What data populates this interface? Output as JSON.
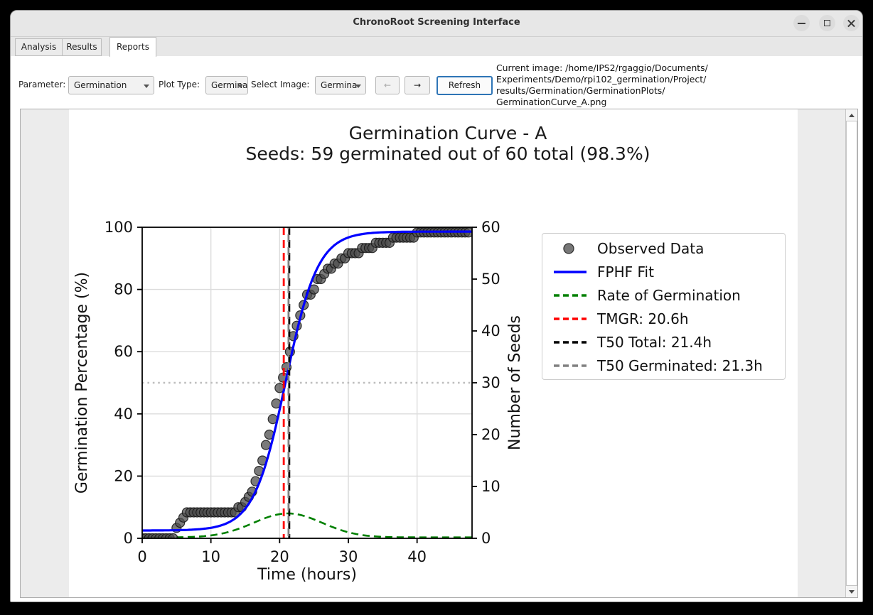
{
  "window": {
    "title": "ChronoRoot Screening Interface",
    "icons": {
      "minimize": "minimize-icon",
      "maximize": "maximize-icon",
      "close": "close-icon",
      "combo_caret": "chevron-down-icon",
      "scroll_up": "triangle-up-icon",
      "scroll_down": "triangle-down-icon"
    }
  },
  "tabs": [
    {
      "label": "Analysis",
      "active": false
    },
    {
      "label": "Results",
      "active": false
    },
    {
      "label": "Reports",
      "active": true
    }
  ],
  "toolbar": {
    "parameter_label": "Parameter:",
    "parameter_value": "Germination",
    "plot_type_label": "Plot Type:",
    "plot_type_value": "Germina",
    "select_image_label": "Select Image:",
    "select_image_value": "Germina",
    "prev_button": "←",
    "next_button": "→",
    "refresh_button": "Refresh",
    "current_image": "Current image: /home/IPS2/rgaggio/Documents/\nExperiments/Demo/rpi102_germination/Project/\nresults/Germination/GerminationPlots/\nGerminationCurve_A.png"
  },
  "chart_data": {
    "type": "line",
    "title": "Germination Curve - A",
    "subtitle": "Seeds: 59 germinated out of 60 total (98.3%)",
    "xlabel": "Time (hours)",
    "ylabel_left": "Germination Percentage (%)",
    "ylabel_right": "Number of Seeds",
    "xlim": [
      0,
      48
    ],
    "ylim_left": [
      0,
      100
    ],
    "ylim_right": [
      0,
      60
    ],
    "xticks": [
      0,
      10,
      20,
      30,
      40
    ],
    "yticks_left": [
      0,
      20,
      40,
      60,
      80,
      100
    ],
    "yticks_right": [
      0,
      10,
      20,
      30,
      40,
      50,
      60
    ],
    "grid": true,
    "total_seeds": 60,
    "germinated_seeds": 59,
    "germination_rate_pct": 98.3,
    "observed": {
      "label": "Observed Data",
      "color": "#4d4d4d",
      "t0": 0,
      "dt": 0.5,
      "seeds": [
        0,
        0,
        0,
        0,
        0,
        0,
        0,
        0,
        0,
        0,
        2,
        3,
        4,
        5,
        5,
        5,
        5,
        5,
        5,
        5,
        5,
        5,
        5,
        5,
        5,
        5,
        5,
        5,
        6,
        6,
        7,
        8,
        9,
        11,
        13,
        15,
        18,
        20,
        23,
        26,
        29,
        31,
        33,
        36,
        39,
        41,
        43,
        45,
        47,
        47,
        48,
        50,
        50,
        51,
        52,
        52,
        53,
        53,
        54,
        54,
        55,
        55,
        55,
        55,
        56,
        56,
        56,
        56,
        57,
        57,
        57,
        57,
        57,
        58,
        58,
        58,
        58,
        58,
        58,
        58,
        59,
        59,
        59,
        59,
        59,
        59,
        59,
        59,
        59,
        59,
        59,
        59,
        59,
        59,
        59,
        59
      ]
    },
    "fit": {
      "label": "FPHF Fit",
      "color": "#0000ff",
      "model": "logistic",
      "base_pct": 2.5,
      "max_pct": 98.6,
      "midpoint_h": 20.9,
      "rate_k": 0.43
    },
    "rate": {
      "label": "Rate of Germination",
      "color": "#008000",
      "peak_pct": 8.0,
      "center_h": 21.2,
      "sigma_h": 5.0,
      "baseline_pct": 0.3
    },
    "markers": {
      "tmgr": {
        "label": "TMGR: 20.6h",
        "t": 20.6,
        "color": "#ff0000"
      },
      "t50_total": {
        "label": "T50 Total: 21.4h",
        "t": 21.4,
        "color": "#000000"
      },
      "t50_germinated": {
        "label": "T50 Germinated: 21.3h",
        "t": 21.3,
        "color": "#808080"
      },
      "fifty_percent": {
        "y": 50,
        "color": "#bdbdbd"
      }
    },
    "legend": [
      {
        "type": "marker",
        "color": "#777777",
        "label": "Observed Data"
      },
      {
        "type": "line",
        "color": "#0000ff",
        "dash": "",
        "label": "FPHF Fit"
      },
      {
        "type": "line",
        "color": "#008000",
        "dash": "8 5",
        "label": "Rate of Germination"
      },
      {
        "type": "line",
        "color": "#ff0000",
        "dash": "8 5",
        "label": "TMGR: 20.6h"
      },
      {
        "type": "line",
        "color": "#000000",
        "dash": "8 5",
        "label": "T50 Total: 21.4h"
      },
      {
        "type": "line",
        "color": "#808080",
        "dash": "8 5",
        "label": "T50 Germinated: 21.3h"
      }
    ],
    "legend_position": "upper-right"
  }
}
